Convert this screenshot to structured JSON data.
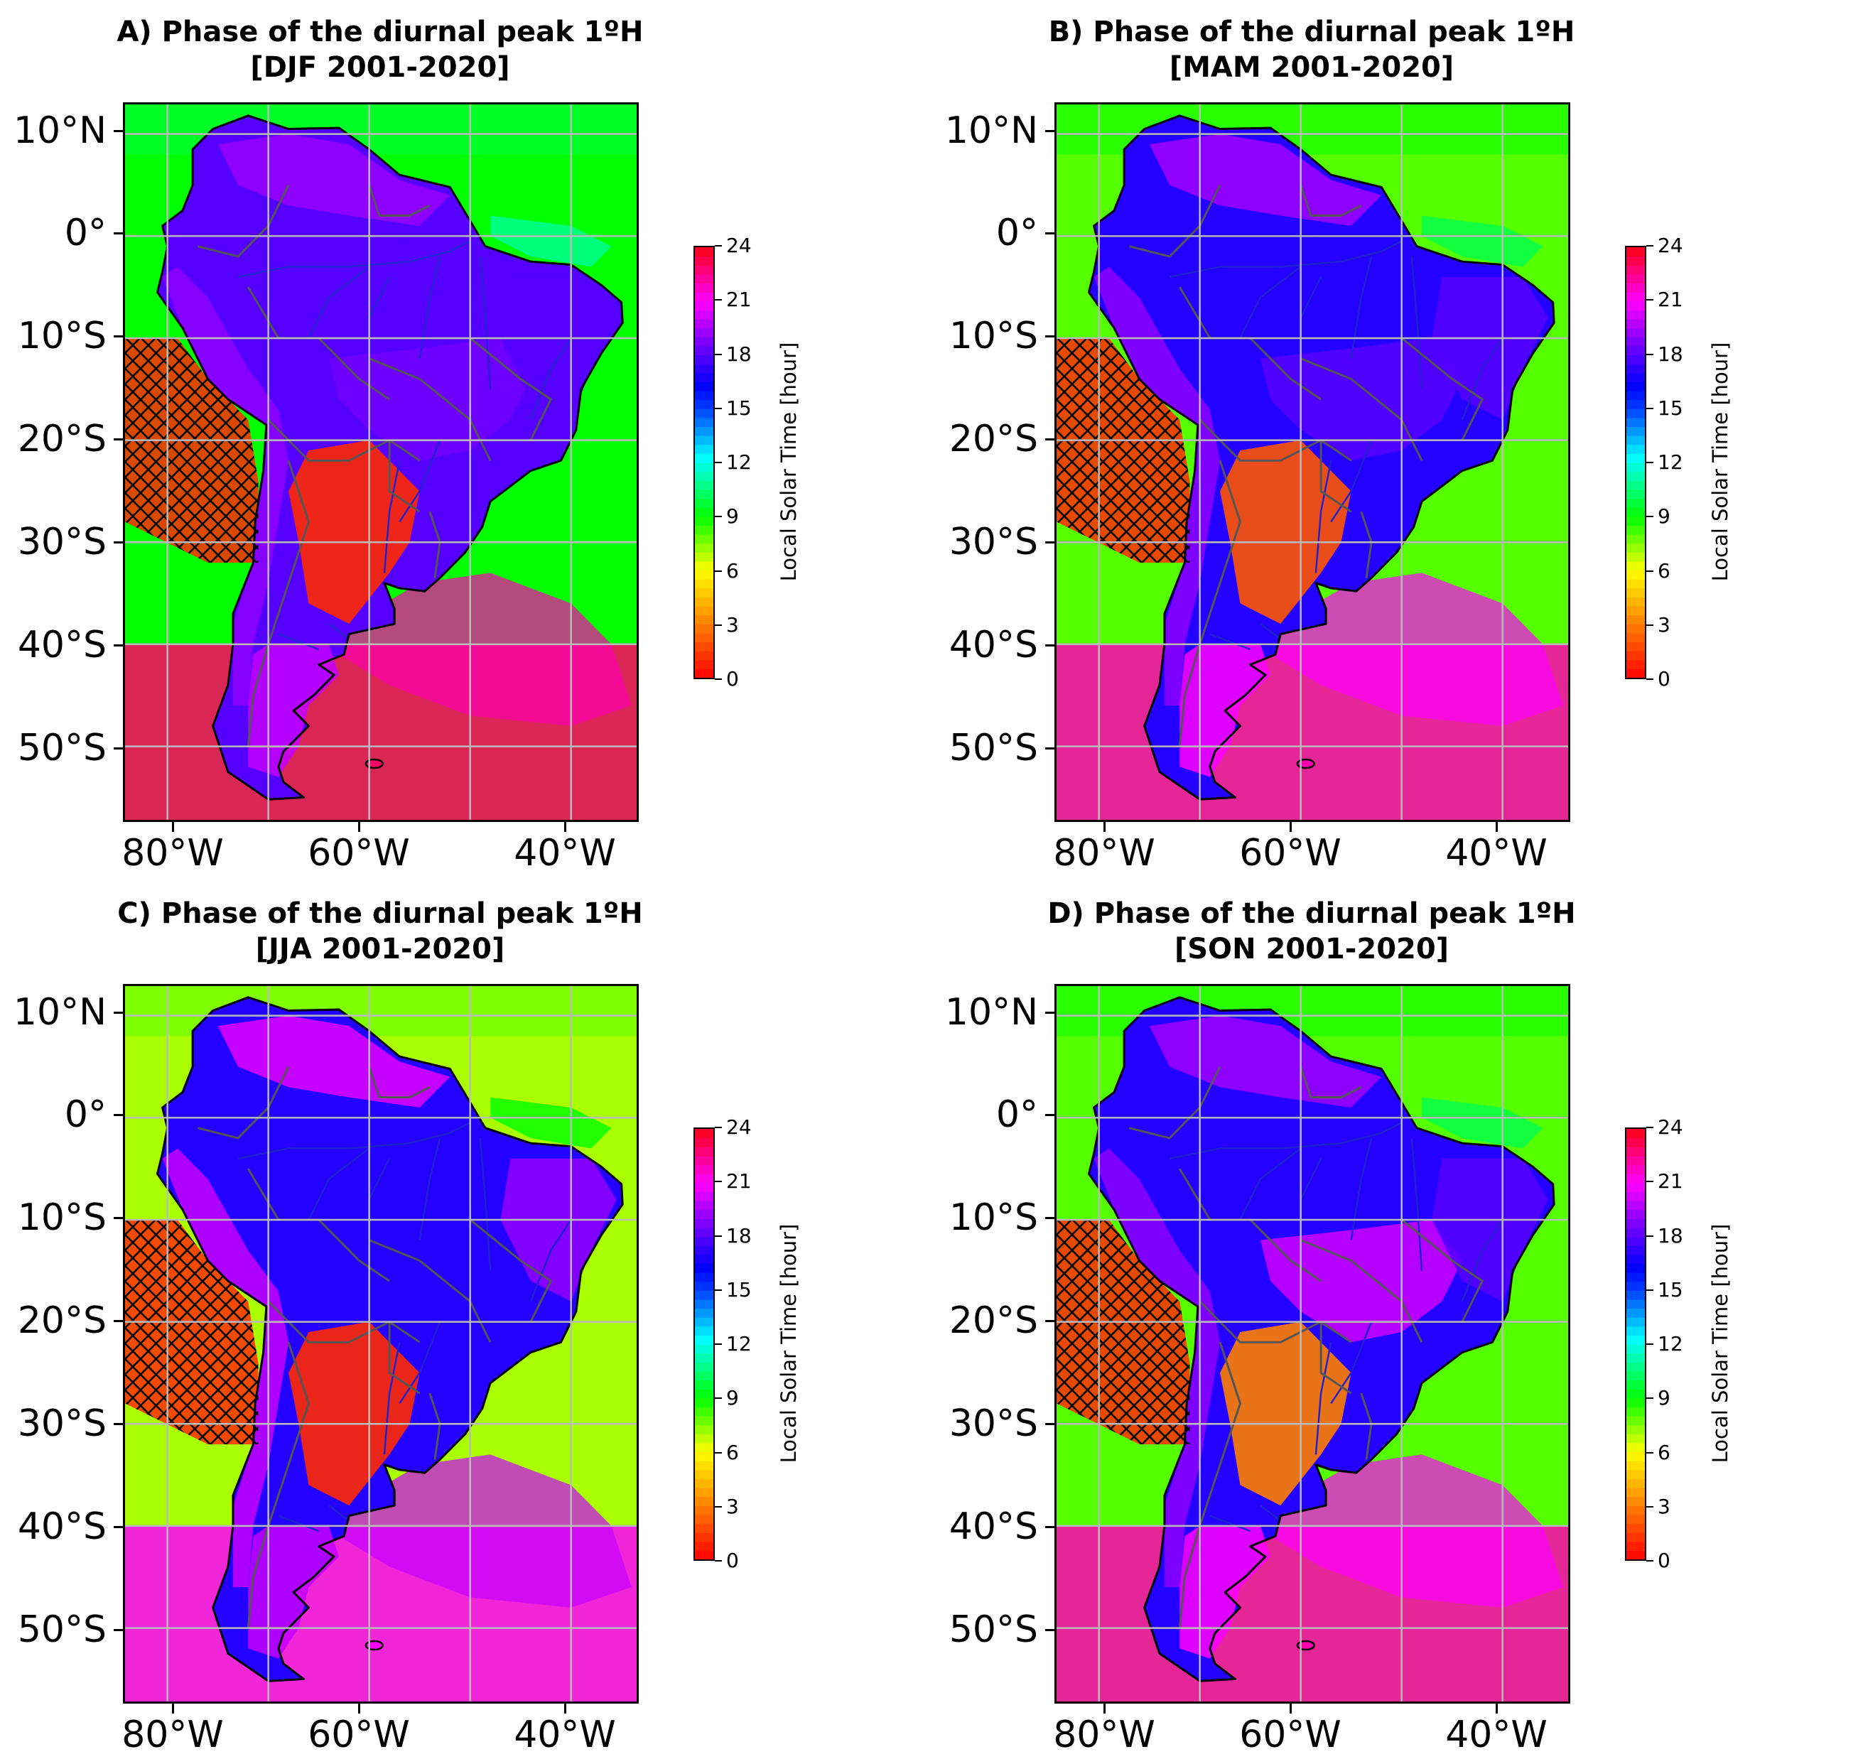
{
  "colors": {
    "colormap": "hsv",
    "land_outline": "#000000",
    "rivers": "#2222cc",
    "borders": "#555555",
    "gridlines": "#bbbbbb",
    "hatch": "#000000"
  },
  "lat_labels": [
    "10°N",
    "0°",
    "10°S",
    "20°S",
    "30°S",
    "40°S",
    "50°S"
  ],
  "lon_labels": [
    "80°W",
    "60°W",
    "40°W"
  ],
  "colorbar": {
    "label": "Local Solar Time [hour]",
    "ticks": [
      "0",
      "3",
      "6",
      "9",
      "12",
      "15",
      "18",
      "21",
      "24"
    ],
    "range": [
      0,
      24
    ]
  },
  "panels": [
    {
      "id": "A",
      "title_line1": "A) Phase of the diurnal peak 1ºH",
      "title_line2": "[DJF 2001-2020]",
      "regions": {
        "ocean": 9,
        "north_land": 19,
        "amazon": 18,
        "central": 18.5,
        "east_coast": 18,
        "south_land": 1,
        "andes": 19,
        "south_ocean": 23,
        "patagonia": 20
      }
    },
    {
      "id": "B",
      "title_line1": "B) Phase of the diurnal peak 1ºH",
      "title_line2": "[MAM 2001-2020]",
      "regions": {
        "ocean": 8,
        "north_land": 19,
        "amazon": 17,
        "central": 18,
        "east_coast": 18,
        "south_land": 2,
        "andes": 19,
        "south_ocean": 22,
        "patagonia": 21
      }
    },
    {
      "id": "C",
      "title_line1": "C) Phase of the diurnal peak 1ºH",
      "title_line2": "[JJA 2001-2020]",
      "regions": {
        "ocean": 7,
        "north_land": 20,
        "amazon": 17,
        "central": 17,
        "east_coast": 19,
        "south_land": 1,
        "andes": 20,
        "south_ocean": 21,
        "patagonia": 20
      }
    },
    {
      "id": "D",
      "title_line1": "D) Phase of the diurnal peak 1ºH",
      "title_line2": "[SON 2001-2020]",
      "regions": {
        "ocean": 8,
        "north_land": 19,
        "amazon": 17,
        "central": 20,
        "east_coast": 18,
        "south_land": 3,
        "andes": 19,
        "south_ocean": 22,
        "patagonia": 21
      }
    }
  ]
}
